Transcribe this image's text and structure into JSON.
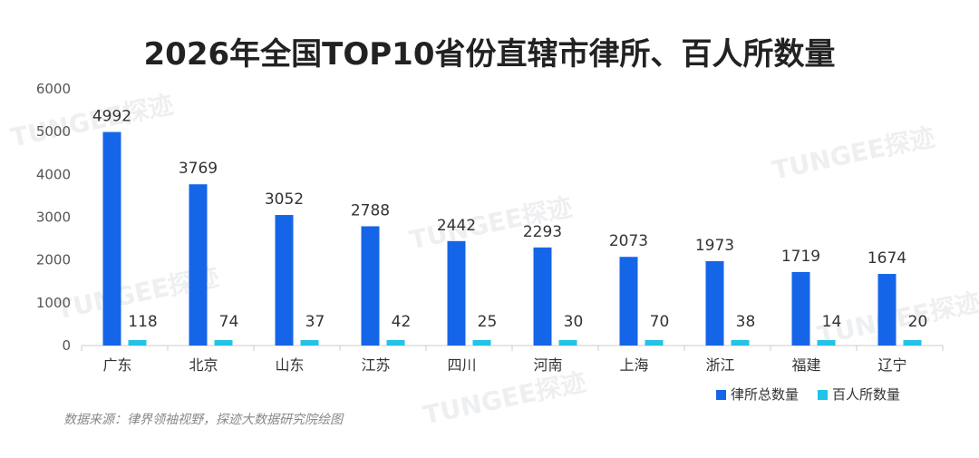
{
  "title": "2026年全国TOP10省份直辖市律所、百人所数量",
  "source": "数据来源：律界领袖视野，探迹大数据研究院绘图",
  "watermark": "TUNGEE探迹",
  "colors": {
    "primary": "#1565e8",
    "secondary": "#21c3e6"
  },
  "chart_data": {
    "type": "bar",
    "title": "2026年全国TOP10省份直辖市律所、百人所数量",
    "categories": [
      "广东",
      "北京",
      "山东",
      "江苏",
      "四川",
      "河南",
      "上海",
      "浙江",
      "福建",
      "辽宁"
    ],
    "series": [
      {
        "name": "律所总数量",
        "values": [
          4992,
          3769,
          3052,
          2788,
          2442,
          2293,
          2073,
          1973,
          1719,
          1674
        ]
      },
      {
        "name": "百人所数量",
        "values": [
          118,
          74,
          37,
          42,
          25,
          30,
          70,
          38,
          14,
          20
        ]
      }
    ],
    "yticks": [
      0,
      1000,
      2000,
      3000,
      4000,
      5000,
      6000
    ],
    "ylim": [
      0,
      6000
    ],
    "legend_position": "bottom-right",
    "grid": false
  }
}
